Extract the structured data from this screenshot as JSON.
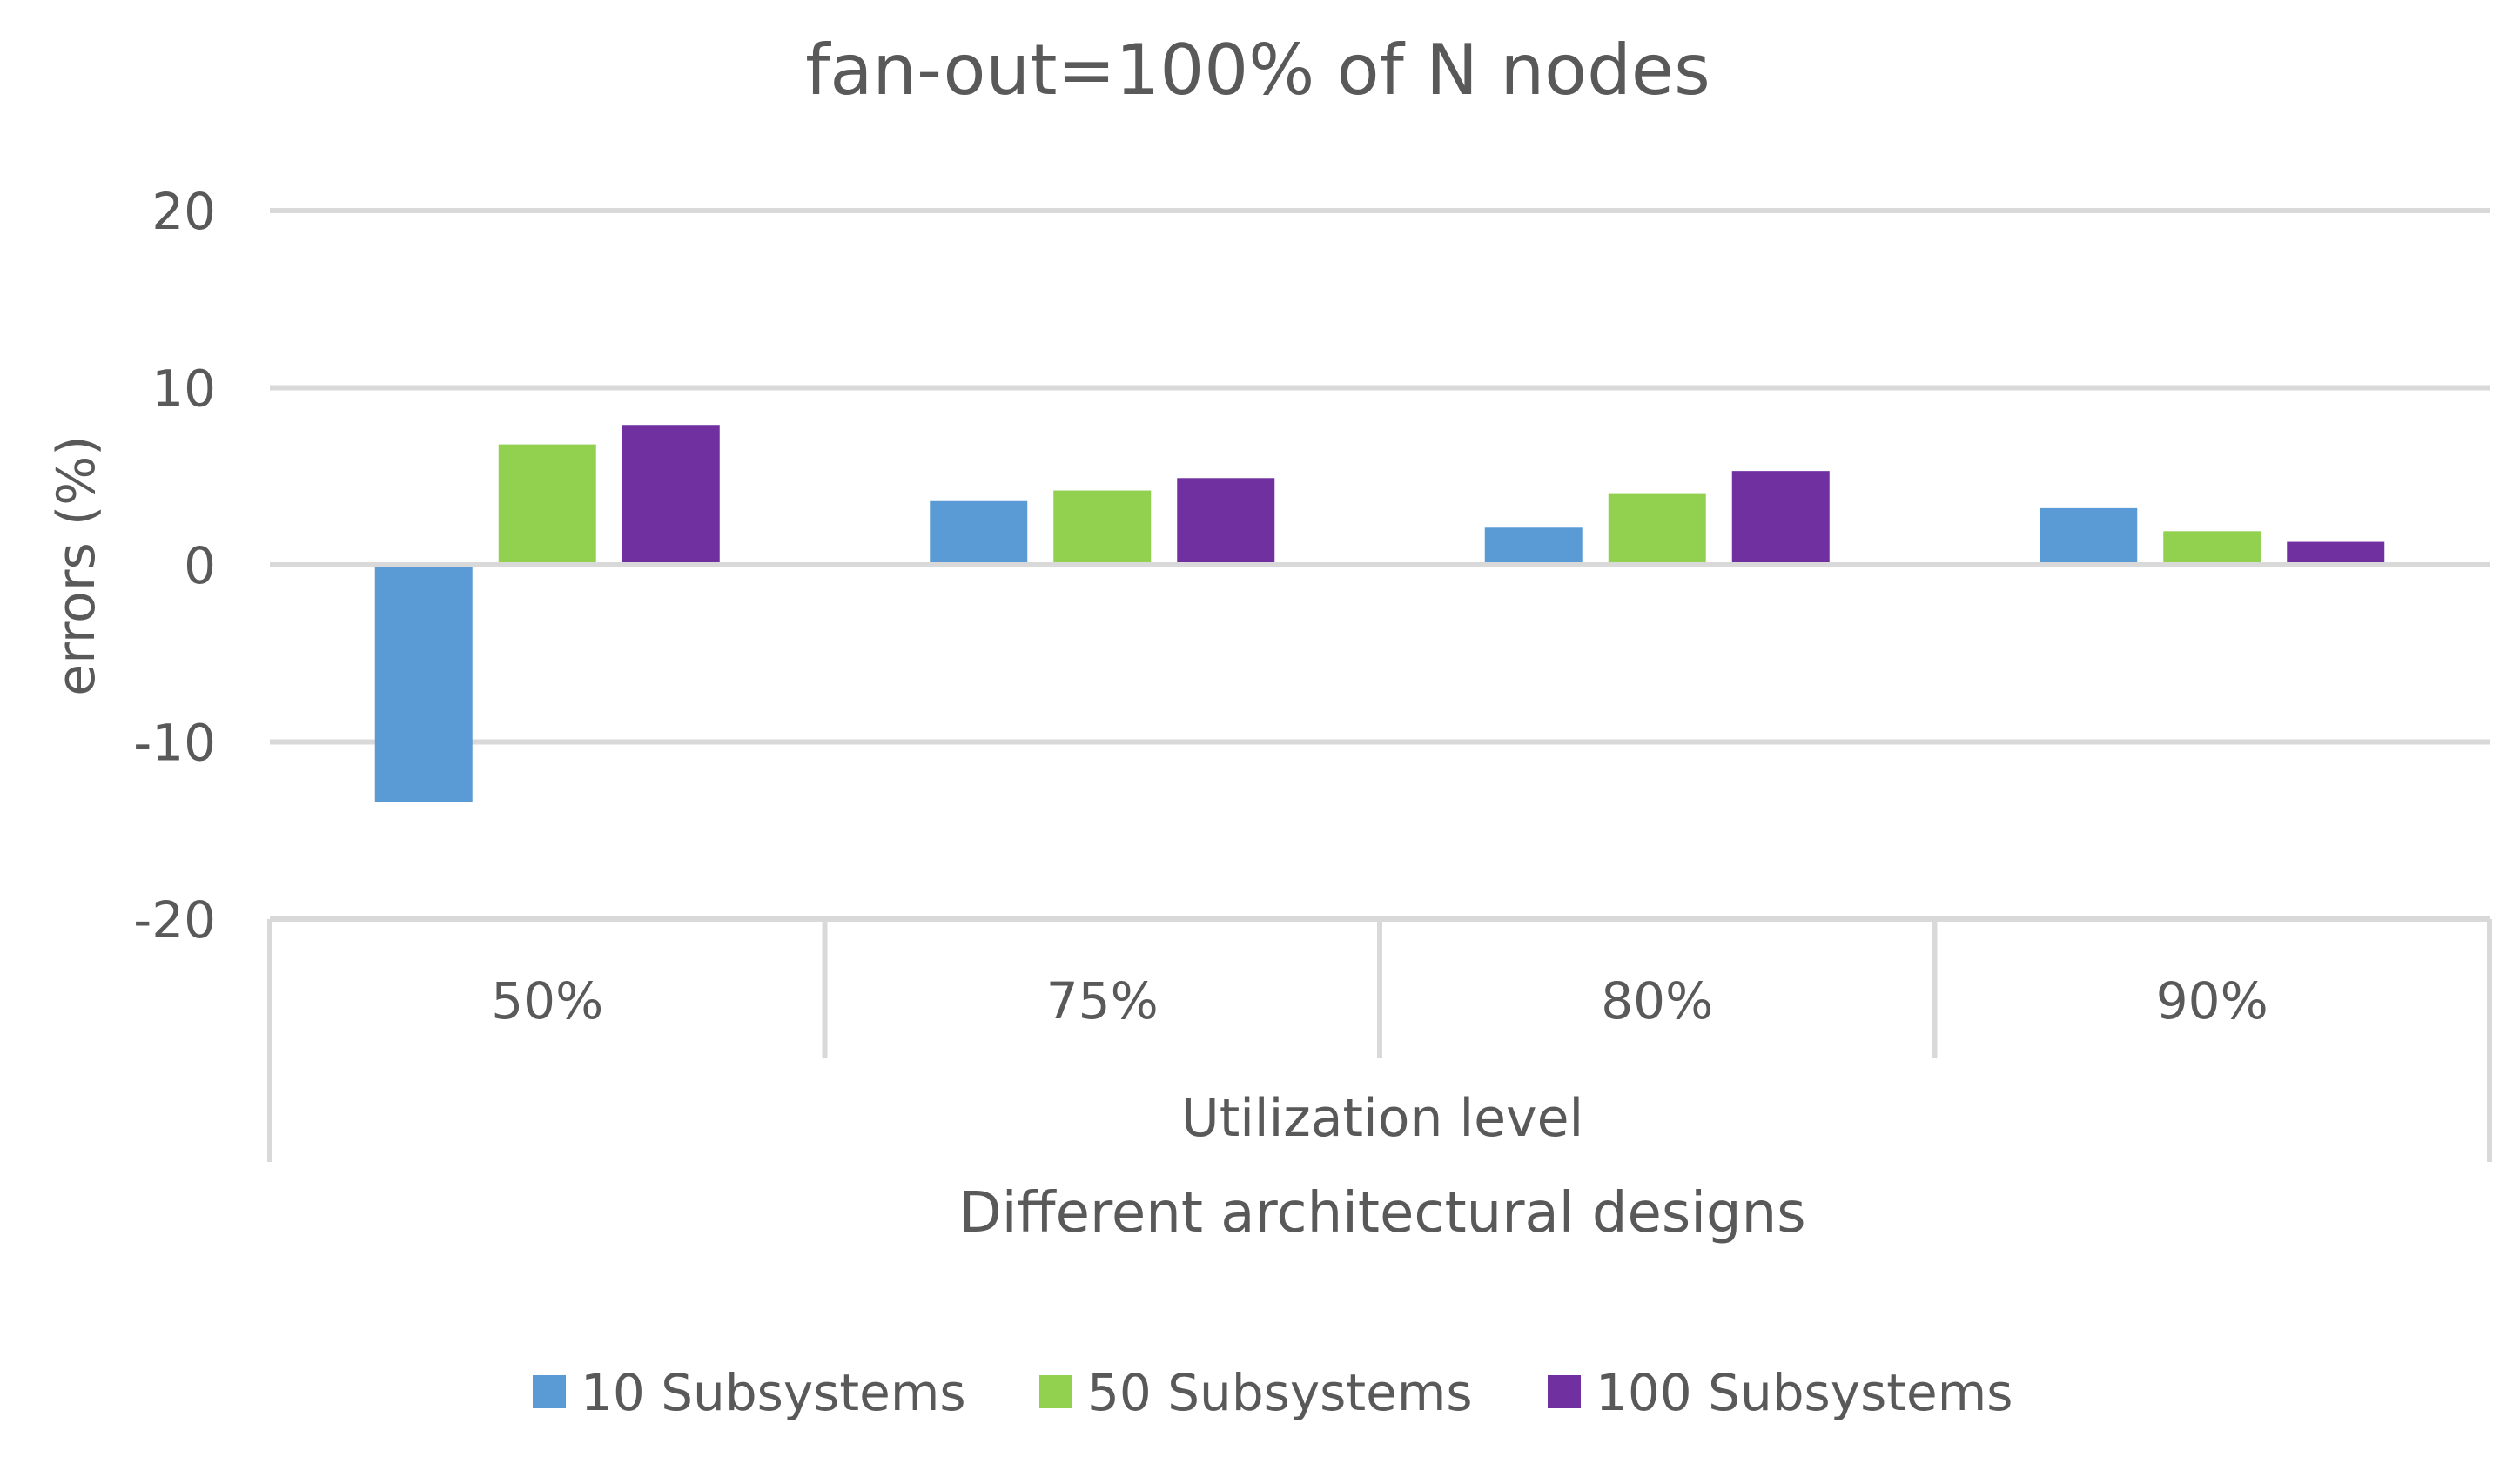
{
  "chart_data": {
    "type": "bar",
    "title": "fan-out=100% of N nodes",
    "ylabel": "errors (%)",
    "xlabel_inner": "Utilization level",
    "xlabel_outer": "Different architectural designs",
    "ylim": [
      -20,
      20
    ],
    "yticks": [
      20,
      10,
      0,
      -10,
      -20
    ],
    "categories": [
      "50%",
      "75%",
      "80%",
      "90%"
    ],
    "series": [
      {
        "name": "10 Subsystems",
        "color": "#5b9bd5",
        "values": [
          -13.4,
          3.6,
          2.1,
          3.2
        ]
      },
      {
        "name": "50 Subsystems",
        "color": "#92d050",
        "values": [
          6.8,
          4.2,
          4.0,
          1.9
        ]
      },
      {
        "name": "100 Subsystems",
        "color": "#7030a0",
        "values": [
          7.9,
          4.9,
          5.3,
          1.3
        ]
      }
    ],
    "grid": true,
    "legend": "bottom"
  }
}
